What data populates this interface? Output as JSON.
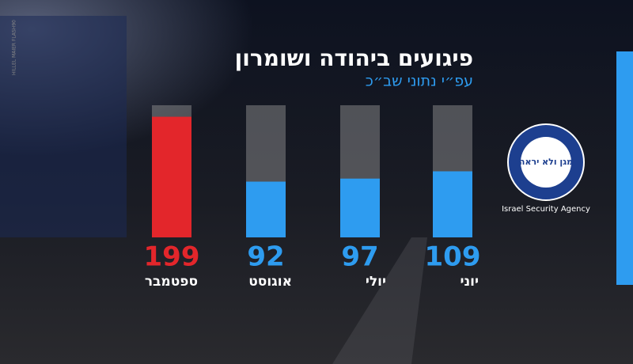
{
  "chart_data": {
    "type": "bar",
    "title": "פיגועים ביהודה ושומרון",
    "subtitle": "עפ״י נתוני שב״כ",
    "categories": [
      "ספטמבר",
      "אוגוסט",
      "יולי",
      "יוני"
    ],
    "values": [
      199,
      92,
      97,
      109
    ],
    "colors": [
      "#e3262b",
      "#2e9cf0",
      "#2e9cf0",
      "#2e9cf0"
    ],
    "ylim": [
      0,
      218
    ]
  },
  "logo": {
    "motto": "מגן ולא יראה",
    "ring_text": "Israel Security Agency"
  },
  "credit": "HILLEL MAIER FLASH90"
}
